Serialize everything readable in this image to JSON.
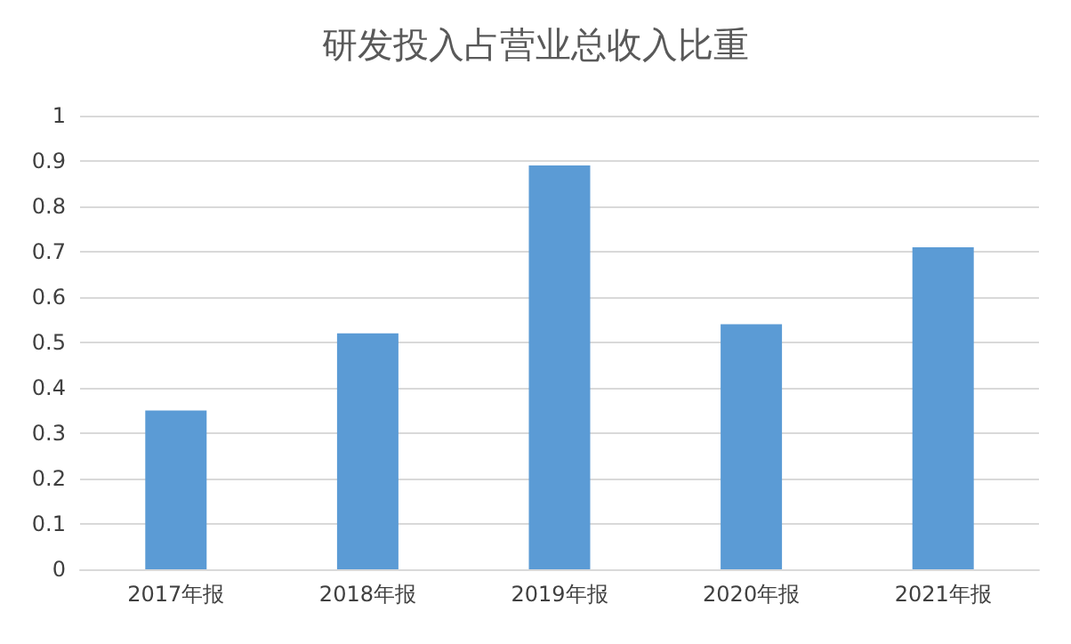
{
  "chart_data": {
    "type": "bar",
    "title": "研发投入占营业总收入比重",
    "categories": [
      "2017年报",
      "2018年报",
      "2019年报",
      "2020年报",
      "2021年报"
    ],
    "values": [
      0.35,
      0.52,
      0.89,
      0.54,
      0.71
    ],
    "color": "#5b9bd5",
    "ylim": [
      0,
      1
    ],
    "yticks": [
      0,
      0.1,
      0.2,
      0.3,
      0.4,
      0.5,
      0.6,
      0.7,
      0.8,
      0.9,
      1
    ],
    "grid": "y"
  }
}
